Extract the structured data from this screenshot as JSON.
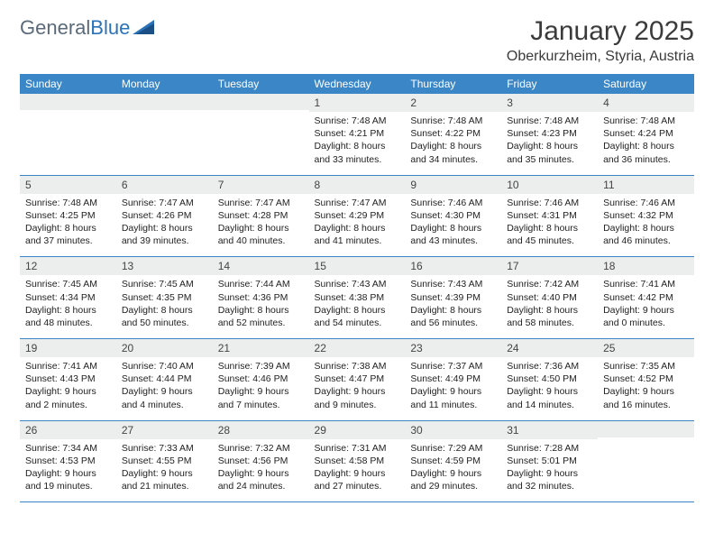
{
  "logo": {
    "word1": "General",
    "word2": "Blue"
  },
  "title": "January 2025",
  "location": "Oberkurzheim, Styria, Austria",
  "colors": {
    "header_bg": "#3b86c6",
    "header_text": "#ffffff",
    "daynum_bg": "#eceded",
    "border": "#3b86c6",
    "logo_gray": "#5b6a79",
    "logo_blue": "#2a73b8"
  },
  "weekdays": [
    "Sunday",
    "Monday",
    "Tuesday",
    "Wednesday",
    "Thursday",
    "Friday",
    "Saturday"
  ],
  "weeks": [
    [
      {
        "blank": true
      },
      {
        "blank": true
      },
      {
        "blank": true
      },
      {
        "day": "1",
        "sunrise": "Sunrise: 7:48 AM",
        "sunset": "Sunset: 4:21 PM",
        "dl1": "Daylight: 8 hours",
        "dl2": "and 33 minutes."
      },
      {
        "day": "2",
        "sunrise": "Sunrise: 7:48 AM",
        "sunset": "Sunset: 4:22 PM",
        "dl1": "Daylight: 8 hours",
        "dl2": "and 34 minutes."
      },
      {
        "day": "3",
        "sunrise": "Sunrise: 7:48 AM",
        "sunset": "Sunset: 4:23 PM",
        "dl1": "Daylight: 8 hours",
        "dl2": "and 35 minutes."
      },
      {
        "day": "4",
        "sunrise": "Sunrise: 7:48 AM",
        "sunset": "Sunset: 4:24 PM",
        "dl1": "Daylight: 8 hours",
        "dl2": "and 36 minutes."
      }
    ],
    [
      {
        "day": "5",
        "sunrise": "Sunrise: 7:48 AM",
        "sunset": "Sunset: 4:25 PM",
        "dl1": "Daylight: 8 hours",
        "dl2": "and 37 minutes."
      },
      {
        "day": "6",
        "sunrise": "Sunrise: 7:47 AM",
        "sunset": "Sunset: 4:26 PM",
        "dl1": "Daylight: 8 hours",
        "dl2": "and 39 minutes."
      },
      {
        "day": "7",
        "sunrise": "Sunrise: 7:47 AM",
        "sunset": "Sunset: 4:28 PM",
        "dl1": "Daylight: 8 hours",
        "dl2": "and 40 minutes."
      },
      {
        "day": "8",
        "sunrise": "Sunrise: 7:47 AM",
        "sunset": "Sunset: 4:29 PM",
        "dl1": "Daylight: 8 hours",
        "dl2": "and 41 minutes."
      },
      {
        "day": "9",
        "sunrise": "Sunrise: 7:46 AM",
        "sunset": "Sunset: 4:30 PM",
        "dl1": "Daylight: 8 hours",
        "dl2": "and 43 minutes."
      },
      {
        "day": "10",
        "sunrise": "Sunrise: 7:46 AM",
        "sunset": "Sunset: 4:31 PM",
        "dl1": "Daylight: 8 hours",
        "dl2": "and 45 minutes."
      },
      {
        "day": "11",
        "sunrise": "Sunrise: 7:46 AM",
        "sunset": "Sunset: 4:32 PM",
        "dl1": "Daylight: 8 hours",
        "dl2": "and 46 minutes."
      }
    ],
    [
      {
        "day": "12",
        "sunrise": "Sunrise: 7:45 AM",
        "sunset": "Sunset: 4:34 PM",
        "dl1": "Daylight: 8 hours",
        "dl2": "and 48 minutes."
      },
      {
        "day": "13",
        "sunrise": "Sunrise: 7:45 AM",
        "sunset": "Sunset: 4:35 PM",
        "dl1": "Daylight: 8 hours",
        "dl2": "and 50 minutes."
      },
      {
        "day": "14",
        "sunrise": "Sunrise: 7:44 AM",
        "sunset": "Sunset: 4:36 PM",
        "dl1": "Daylight: 8 hours",
        "dl2": "and 52 minutes."
      },
      {
        "day": "15",
        "sunrise": "Sunrise: 7:43 AM",
        "sunset": "Sunset: 4:38 PM",
        "dl1": "Daylight: 8 hours",
        "dl2": "and 54 minutes."
      },
      {
        "day": "16",
        "sunrise": "Sunrise: 7:43 AM",
        "sunset": "Sunset: 4:39 PM",
        "dl1": "Daylight: 8 hours",
        "dl2": "and 56 minutes."
      },
      {
        "day": "17",
        "sunrise": "Sunrise: 7:42 AM",
        "sunset": "Sunset: 4:40 PM",
        "dl1": "Daylight: 8 hours",
        "dl2": "and 58 minutes."
      },
      {
        "day": "18",
        "sunrise": "Sunrise: 7:41 AM",
        "sunset": "Sunset: 4:42 PM",
        "dl1": "Daylight: 9 hours",
        "dl2": "and 0 minutes."
      }
    ],
    [
      {
        "day": "19",
        "sunrise": "Sunrise: 7:41 AM",
        "sunset": "Sunset: 4:43 PM",
        "dl1": "Daylight: 9 hours",
        "dl2": "and 2 minutes."
      },
      {
        "day": "20",
        "sunrise": "Sunrise: 7:40 AM",
        "sunset": "Sunset: 4:44 PM",
        "dl1": "Daylight: 9 hours",
        "dl2": "and 4 minutes."
      },
      {
        "day": "21",
        "sunrise": "Sunrise: 7:39 AM",
        "sunset": "Sunset: 4:46 PM",
        "dl1": "Daylight: 9 hours",
        "dl2": "and 7 minutes."
      },
      {
        "day": "22",
        "sunrise": "Sunrise: 7:38 AM",
        "sunset": "Sunset: 4:47 PM",
        "dl1": "Daylight: 9 hours",
        "dl2": "and 9 minutes."
      },
      {
        "day": "23",
        "sunrise": "Sunrise: 7:37 AM",
        "sunset": "Sunset: 4:49 PM",
        "dl1": "Daylight: 9 hours",
        "dl2": "and 11 minutes."
      },
      {
        "day": "24",
        "sunrise": "Sunrise: 7:36 AM",
        "sunset": "Sunset: 4:50 PM",
        "dl1": "Daylight: 9 hours",
        "dl2": "and 14 minutes."
      },
      {
        "day": "25",
        "sunrise": "Sunrise: 7:35 AM",
        "sunset": "Sunset: 4:52 PM",
        "dl1": "Daylight: 9 hours",
        "dl2": "and 16 minutes."
      }
    ],
    [
      {
        "day": "26",
        "sunrise": "Sunrise: 7:34 AM",
        "sunset": "Sunset: 4:53 PM",
        "dl1": "Daylight: 9 hours",
        "dl2": "and 19 minutes."
      },
      {
        "day": "27",
        "sunrise": "Sunrise: 7:33 AM",
        "sunset": "Sunset: 4:55 PM",
        "dl1": "Daylight: 9 hours",
        "dl2": "and 21 minutes."
      },
      {
        "day": "28",
        "sunrise": "Sunrise: 7:32 AM",
        "sunset": "Sunset: 4:56 PM",
        "dl1": "Daylight: 9 hours",
        "dl2": "and 24 minutes."
      },
      {
        "day": "29",
        "sunrise": "Sunrise: 7:31 AM",
        "sunset": "Sunset: 4:58 PM",
        "dl1": "Daylight: 9 hours",
        "dl2": "and 27 minutes."
      },
      {
        "day": "30",
        "sunrise": "Sunrise: 7:29 AM",
        "sunset": "Sunset: 4:59 PM",
        "dl1": "Daylight: 9 hours",
        "dl2": "and 29 minutes."
      },
      {
        "day": "31",
        "sunrise": "Sunrise: 7:28 AM",
        "sunset": "Sunset: 5:01 PM",
        "dl1": "Daylight: 9 hours",
        "dl2": "and 32 minutes."
      },
      {
        "blank": true
      }
    ]
  ]
}
